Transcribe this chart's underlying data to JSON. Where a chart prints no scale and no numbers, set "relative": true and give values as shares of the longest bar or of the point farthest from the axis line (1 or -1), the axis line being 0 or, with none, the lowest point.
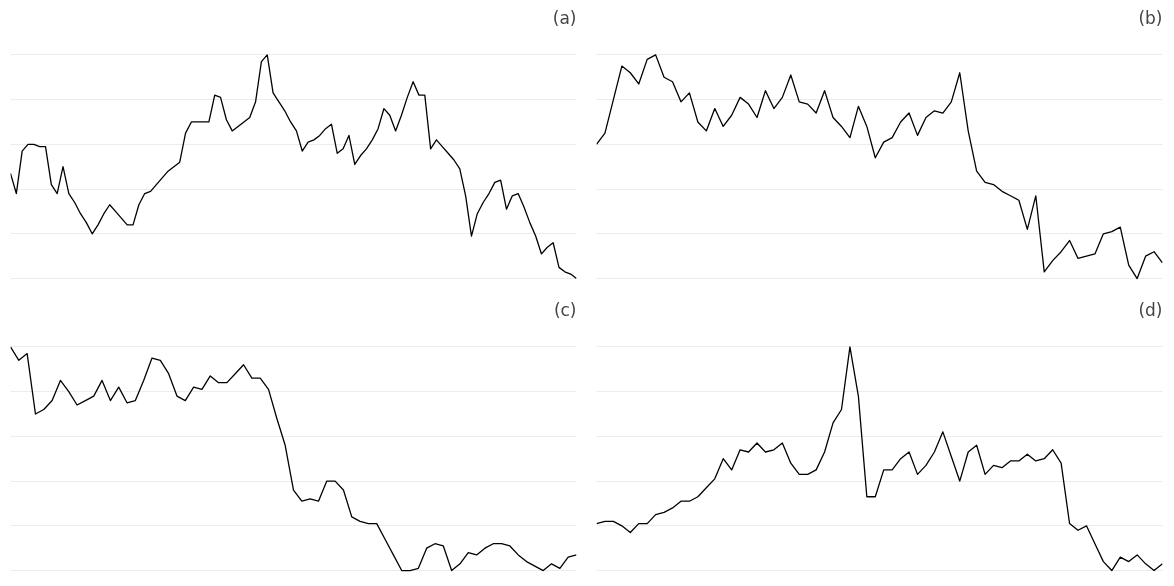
{
  "chart_data": [
    {
      "type": "line",
      "title": "(a)",
      "relative": true,
      "tick_labels": false,
      "grid": "y",
      "line_style": "solid",
      "categories": [
        null,
        null,
        null,
        null,
        null,
        null,
        null,
        null,
        null,
        null,
        null,
        null,
        null,
        null,
        null,
        null,
        null,
        null,
        null,
        null,
        null,
        null,
        null,
        null,
        null,
        null,
        null,
        null,
        null,
        null,
        null,
        null,
        null,
        null,
        null,
        null,
        null,
        null,
        null,
        null,
        null,
        null,
        null,
        null,
        null,
        null,
        null,
        null,
        null,
        null,
        null,
        null,
        null,
        null,
        null,
        null,
        null,
        null,
        null,
        null,
        null,
        null,
        null,
        null,
        null,
        null,
        null,
        null,
        null,
        null,
        null,
        null,
        null,
        null,
        null,
        null,
        null,
        null,
        null,
        null,
        null,
        null,
        null,
        null,
        null,
        null,
        null,
        null,
        null,
        null,
        null,
        null,
        null,
        null,
        null,
        null,
        null,
        null
      ],
      "series": [
        {
          "color": "#000000",
          "values": [
            0.47,
            0.38,
            0.57,
            0.6,
            0.6,
            0.59,
            0.59,
            0.42,
            0.38,
            0.5,
            0.38,
            0.34,
            0.29,
            0.25,
            0.2,
            0.24,
            0.29,
            0.33,
            0.3,
            0.27,
            0.24,
            0.24,
            0.33,
            0.38,
            0.39,
            0.42,
            0.45,
            0.48,
            0.5,
            0.52,
            0.65,
            0.7,
            0.7,
            0.7,
            0.7,
            0.82,
            0.81,
            0.71,
            0.66,
            0.68,
            0.7,
            0.72,
            0.79,
            0.97,
            1,
            0.83,
            0.79,
            0.75,
            0.7,
            0.66,
            0.57,
            0.61,
            0.62,
            0.64,
            0.67,
            0.69,
            0.56,
            0.58,
            0.64,
            0.51,
            0.55,
            0.58,
            0.62,
            0.67,
            0.76,
            0.73,
            0.66,
            0.73,
            0.81,
            0.88,
            0.82,
            0.82,
            0.58,
            0.62,
            0.59,
            0.56,
            0.53,
            0.49,
            0.37,
            0.19,
            0.29,
            0.34,
            0.38,
            0.43,
            0.44,
            0.31,
            0.37,
            0.38,
            0.32,
            0.25,
            0.19,
            0.11,
            0.14,
            0.16,
            0.05,
            0.03,
            0.02,
            0
          ]
        }
      ]
    },
    {
      "type": "line",
      "title": "(b)",
      "relative": true,
      "tick_labels": false,
      "grid": "y",
      "line_style": "solid",
      "categories": [
        null,
        null,
        null,
        null,
        null,
        null,
        null,
        null,
        null,
        null,
        null,
        null,
        null,
        null,
        null,
        null,
        null,
        null,
        null,
        null,
        null,
        null,
        null,
        null,
        null,
        null,
        null,
        null,
        null,
        null,
        null,
        null,
        null,
        null,
        null,
        null,
        null,
        null,
        null,
        null,
        null,
        null,
        null,
        null,
        null,
        null,
        null,
        null,
        null,
        null,
        null,
        null,
        null,
        null,
        null,
        null,
        null,
        null,
        null,
        null,
        null,
        null,
        null,
        null,
        null,
        null,
        null,
        null
      ],
      "series": [
        {
          "color": "#000000",
          "values": [
            0.6,
            0.65,
            0.8,
            0.95,
            0.92,
            0.87,
            0.98,
            1,
            0.9,
            0.88,
            0.79,
            0.83,
            0.7,
            0.66,
            0.76,
            0.68,
            0.73,
            0.81,
            0.78,
            0.72,
            0.84,
            0.76,
            0.81,
            0.91,
            0.79,
            0.78,
            0.74,
            0.84,
            0.72,
            0.68,
            0.63,
            0.77,
            0.68,
            0.54,
            0.61,
            0.63,
            0.7,
            0.74,
            0.64,
            0.72,
            0.75,
            0.74,
            0.79,
            0.92,
            0.66,
            0.48,
            0.43,
            0.42,
            0.39,
            0.37,
            0.35,
            0.22,
            0.37,
            0.03,
            0.08,
            0.12,
            0.17,
            0.09,
            0.1,
            0.11,
            0.2,
            0.21,
            0.23,
            0.06,
            0,
            0.1,
            0.12,
            0.07
          ]
        }
      ]
    },
    {
      "type": "line",
      "title": "(c)",
      "relative": true,
      "tick_labels": false,
      "grid": "y",
      "line_style": "solid",
      "categories": [
        null,
        null,
        null,
        null,
        null,
        null,
        null,
        null,
        null,
        null,
        null,
        null,
        null,
        null,
        null,
        null,
        null,
        null,
        null,
        null,
        null,
        null,
        null,
        null,
        null,
        null,
        null,
        null,
        null,
        null,
        null,
        null,
        null,
        null,
        null,
        null,
        null,
        null,
        null,
        null,
        null,
        null,
        null,
        null,
        null,
        null,
        null,
        null,
        null,
        null,
        null,
        null,
        null,
        null,
        null,
        null,
        null,
        null,
        null,
        null,
        null,
        null,
        null,
        null,
        null,
        null,
        null,
        null,
        null
      ],
      "series": [
        {
          "color": "#000000",
          "values": [
            1,
            0.94,
            0.97,
            0.7,
            0.72,
            0.76,
            0.85,
            0.8,
            0.74,
            0.76,
            0.78,
            0.85,
            0.76,
            0.82,
            0.75,
            0.76,
            0.85,
            0.95,
            0.94,
            0.88,
            0.78,
            0.76,
            0.82,
            0.81,
            0.87,
            0.84,
            0.84,
            0.88,
            0.92,
            0.86,
            0.86,
            0.81,
            0.68,
            0.56,
            0.36,
            0.31,
            0.32,
            0.31,
            0.4,
            0.4,
            0.36,
            0.24,
            0.22,
            0.21,
            0.21,
            0.14,
            0.07,
            0,
            0,
            0.01,
            0.1,
            0.12,
            0.11,
            0,
            0.03,
            0.08,
            0.07,
            0.1,
            0.12,
            0.12,
            0.11,
            0.07,
            0.04,
            0.02,
            0,
            0.03,
            0.01,
            0.06,
            0.07
          ]
        }
      ]
    },
    {
      "type": "line",
      "title": "(d)",
      "relative": true,
      "tick_labels": false,
      "grid": "y",
      "line_style": "solid",
      "categories": [
        null,
        null,
        null,
        null,
        null,
        null,
        null,
        null,
        null,
        null,
        null,
        null,
        null,
        null,
        null,
        null,
        null,
        null,
        null,
        null,
        null,
        null,
        null,
        null,
        null,
        null,
        null,
        null,
        null,
        null,
        null,
        null,
        null,
        null,
        null,
        null,
        null,
        null,
        null,
        null,
        null,
        null,
        null,
        null,
        null,
        null,
        null,
        null,
        null,
        null,
        null,
        null,
        null,
        null,
        null,
        null,
        null,
        null,
        null,
        null,
        null,
        null,
        null,
        null,
        null,
        null,
        null,
        null
      ],
      "series": [
        {
          "color": "#000000",
          "values": [
            0.21,
            0.22,
            0.22,
            0.2,
            0.17,
            0.21,
            0.21,
            0.25,
            0.26,
            0.28,
            0.31,
            0.31,
            0.33,
            0.37,
            0.41,
            0.5,
            0.45,
            0.54,
            0.53,
            0.57,
            0.53,
            0.54,
            0.57,
            0.48,
            0.43,
            0.43,
            0.45,
            0.53,
            0.66,
            0.72,
            1,
            0.78,
            0.33,
            0.33,
            0.45,
            0.45,
            0.5,
            0.53,
            0.43,
            0.47,
            0.53,
            0.62,
            0.51,
            0.4,
            0.53,
            0.56,
            0.43,
            0.47,
            0.46,
            0.49,
            0.49,
            0.52,
            0.49,
            0.5,
            0.54,
            0.48,
            0.21,
            0.18,
            0.2,
            0.12,
            0.04,
            0,
            0.06,
            0.04,
            0.07,
            0.03,
            0,
            0.03
          ]
        }
      ]
    }
  ]
}
